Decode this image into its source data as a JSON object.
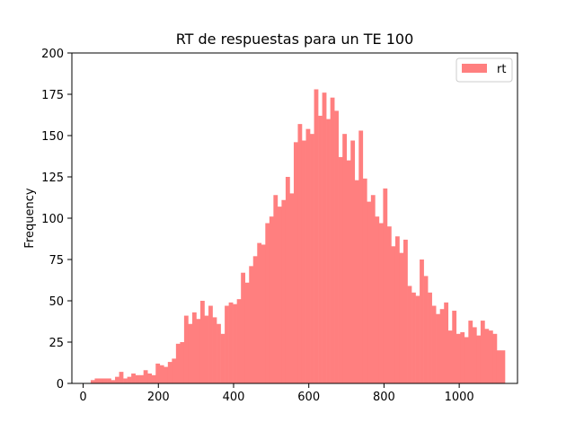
{
  "chart_data": {
    "type": "bar",
    "title": "RT de respuestas para un TE 100",
    "xlabel": "",
    "ylabel": "Frequency",
    "xlim": [
      -30,
      1155
    ],
    "ylim": [
      0,
      200
    ],
    "x_ticks": [
      0,
      200,
      400,
      600,
      800,
      1000
    ],
    "y_ticks": [
      0,
      25,
      50,
      75,
      100,
      125,
      150,
      175,
      200
    ],
    "grid": false,
    "legend_position": "top-right",
    "bin_start": 20,
    "bin_width": 10.8,
    "series": [
      {
        "name": "rt",
        "color": "#ff7f7f",
        "values": [
          2,
          3,
          3,
          3,
          3,
          2,
          4,
          7,
          3,
          4,
          6,
          5,
          5,
          8,
          6,
          5,
          12,
          11,
          10,
          13,
          15,
          24,
          25,
          41,
          36,
          43,
          39,
          50,
          41,
          47,
          40,
          36,
          30,
          47,
          49,
          48,
          51,
          67,
          61,
          71,
          77,
          85,
          84,
          97,
          101,
          114,
          107,
          111,
          125,
          115,
          146,
          157,
          147,
          154,
          151,
          178,
          162,
          176,
          160,
          173,
          165,
          137,
          151,
          135,
          147,
          123,
          153,
          124,
          110,
          114,
          101,
          97,
          118,
          95,
          83,
          89,
          79,
          87,
          59,
          55,
          53,
          75,
          65,
          55,
          47,
          42,
          45,
          49,
          32,
          44,
          30,
          31,
          28,
          38,
          34,
          29,
          38,
          33,
          32,
          30,
          20,
          20
        ]
      }
    ]
  }
}
